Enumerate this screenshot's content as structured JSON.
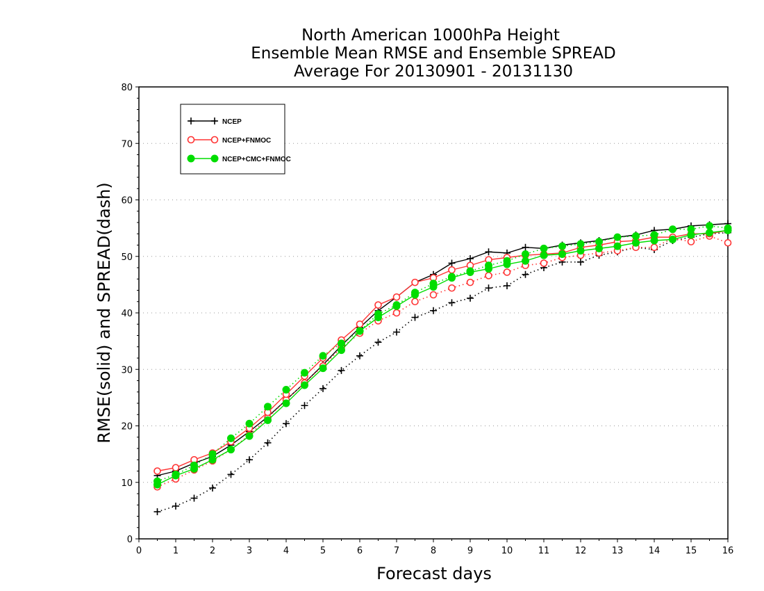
{
  "chart_data": {
    "type": "line",
    "title": [
      "North American 1000hPa Height",
      "Ensemble Mean RMSE and Ensemble SPREAD",
      "Average For 20130901 - 20131130"
    ],
    "xlabel": "Forecast days",
    "ylabel": "RMSE(solid) and SPREAD(dash)",
    "xlim": [
      0,
      16
    ],
    "ylim": [
      0,
      80
    ],
    "x_ticks": [
      "0",
      "1",
      "2",
      "3",
      "4",
      "5",
      "6",
      "7",
      "8",
      "9",
      "10",
      "11",
      "12",
      "13",
      "14",
      "15",
      "16"
    ],
    "y_ticks": [
      "0",
      "10",
      "20",
      "30",
      "40",
      "50",
      "60",
      "70",
      "80"
    ],
    "grid": "horizontal dotted",
    "legend_position": "top-left",
    "x": [
      0.5,
      1.0,
      1.5,
      2.0,
      2.5,
      3.0,
      3.5,
      4.0,
      4.5,
      5.0,
      5.5,
      6.0,
      6.5,
      7.0,
      7.5,
      8.0,
      8.5,
      9.0,
      9.5,
      10.0,
      10.5,
      11.0,
      11.5,
      12.0,
      12.5,
      13.0,
      13.5,
      14.0,
      14.5,
      15.0,
      15.5,
      16.0
    ],
    "series": [
      {
        "name": "NCEP",
        "color": "#000000",
        "marker": "plus",
        "rmse": [
          11.2,
          12.0,
          13.4,
          14.6,
          16.6,
          19.0,
          21.6,
          24.6,
          27.6,
          30.8,
          34.2,
          37.4,
          40.4,
          42.8,
          45.4,
          46.8,
          48.8,
          49.6,
          50.8,
          50.6,
          51.6,
          51.4,
          52.0,
          52.4,
          52.8,
          53.4,
          53.8,
          54.6,
          54.8,
          55.4,
          55.6,
          55.8
        ],
        "spread": [
          4.8,
          5.8,
          7.2,
          9.0,
          11.4,
          14.0,
          17.0,
          20.4,
          23.6,
          26.6,
          29.8,
          32.4,
          34.8,
          36.6,
          39.2,
          40.4,
          41.8,
          42.6,
          44.4,
          44.8,
          46.8,
          48.0,
          49.0,
          49.0,
          50.2,
          50.8,
          51.6,
          51.2,
          52.8,
          53.4,
          54.0,
          54.2
        ]
      },
      {
        "name": "NCEP+FNMOC",
        "color": "#ff3333",
        "marker": "open-circle",
        "rmse": [
          12.0,
          12.6,
          14.0,
          15.2,
          17.2,
          19.6,
          22.4,
          25.6,
          28.8,
          32.0,
          35.2,
          38.0,
          41.4,
          42.8,
          45.4,
          46.2,
          47.6,
          48.4,
          49.4,
          49.8,
          50.2,
          50.4,
          50.6,
          51.6,
          52.0,
          52.6,
          52.8,
          53.4,
          53.4,
          54.0,
          54.0,
          54.6
        ],
        "spread": [
          9.2,
          10.6,
          12.2,
          13.8,
          15.8,
          18.4,
          21.4,
          24.6,
          27.6,
          30.6,
          33.8,
          36.4,
          38.6,
          40.0,
          42.0,
          43.2,
          44.4,
          45.4,
          46.6,
          47.2,
          48.4,
          48.8,
          49.8,
          50.2,
          50.6,
          51.0,
          51.6,
          51.6,
          53.2,
          52.6,
          53.6,
          52.4
        ]
      },
      {
        "name": "NCEP+CMC+FNMOC",
        "color": "#00dd00",
        "marker": "filled-circle",
        "rmse": [
          9.6,
          11.2,
          12.4,
          14.0,
          15.8,
          18.2,
          21.0,
          24.0,
          27.2,
          30.2,
          33.4,
          36.8,
          39.2,
          41.2,
          43.2,
          44.6,
          46.2,
          47.2,
          47.8,
          48.6,
          49.2,
          50.2,
          50.4,
          51.0,
          51.4,
          51.8,
          52.4,
          52.8,
          53.0,
          53.8,
          54.2,
          54.6
        ],
        "spread": [
          10.2,
          11.4,
          13.0,
          15.0,
          17.8,
          20.4,
          23.4,
          26.4,
          29.4,
          32.4,
          34.6,
          36.8,
          39.8,
          41.4,
          43.6,
          45.2,
          46.4,
          47.4,
          48.4,
          49.2,
          50.4,
          51.4,
          51.8,
          52.2,
          52.6,
          53.4,
          53.6,
          53.8,
          54.8,
          54.8,
          55.4,
          55.0
        ]
      }
    ]
  }
}
